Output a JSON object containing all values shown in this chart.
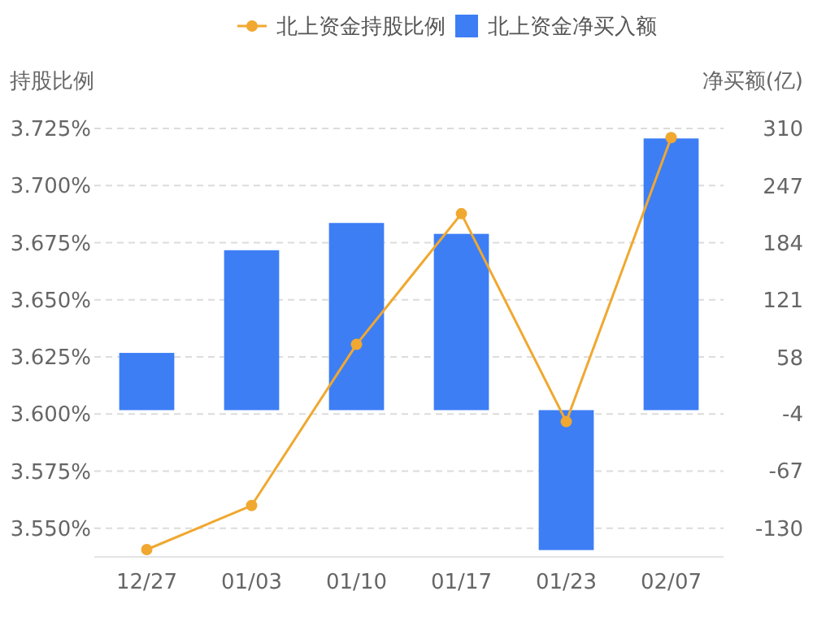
{
  "chart_data": {
    "type": "bar",
    "categories": [
      "12/27",
      "01/03",
      "01/10",
      "01/17",
      "01/23",
      "02/07"
    ],
    "series": [
      {
        "name": "北上资金持股比例",
        "type": "line",
        "color": "#f0a830",
        "marker": "circle",
        "values": [
          3.5407,
          3.56,
          3.6305,
          3.6877,
          3.5967,
          3.721
        ]
      },
      {
        "name": "北上资金净买入额",
        "axis": "y2",
        "color": "#3d7ef5",
        "values": [
          63,
          176,
          206,
          194,
          -154,
          299
        ]
      }
    ],
    "ylabel": "持股比例",
    "y2label": "净买额(亿)",
    "ylim": [
      3.5375,
      3.725
    ],
    "yticks": [
      {
        "value": 3.55,
        "label": "3.550%"
      },
      {
        "value": 3.575,
        "label": "3.575%"
      },
      {
        "value": 3.6,
        "label": "3.600%"
      },
      {
        "value": 3.625,
        "label": "3.625%"
      },
      {
        "value": 3.65,
        "label": "3.650%"
      },
      {
        "value": 3.675,
        "label": "3.675%"
      },
      {
        "value": 3.7,
        "label": "3.700%"
      },
      {
        "value": 3.725,
        "label": "3.725%"
      }
    ],
    "y2lim": [
      -161.5,
      310
    ],
    "y2ticks": [
      -130,
      -67,
      -4,
      58,
      121,
      184,
      247,
      310
    ],
    "grid": true,
    "legend": "top"
  }
}
